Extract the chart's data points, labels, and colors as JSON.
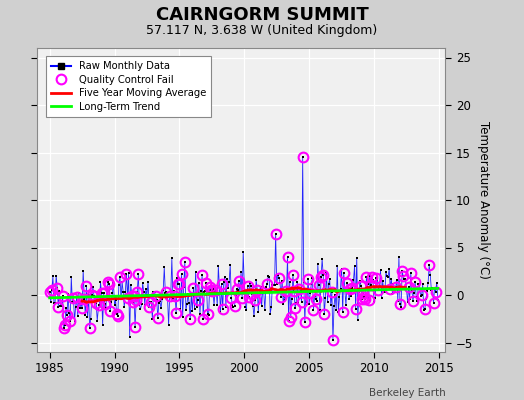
{
  "title": "CAIRNGORM SUMMIT",
  "subtitle": "57.117 N, 3.638 W (United Kingdom)",
  "ylabel": "Temperature Anomaly (°C)",
  "watermark": "Berkeley Earth",
  "xlim": [
    1984.0,
    2015.5
  ],
  "ylim": [
    -6,
    26
  ],
  "yticks": [
    -5,
    0,
    5,
    10,
    15,
    20,
    25
  ],
  "xticks": [
    1985,
    1990,
    1995,
    2000,
    2005,
    2010,
    2015
  ],
  "fig_bg_color": "#d0d0d0",
  "plot_bg_color": "#f0f0f0",
  "title_fontsize": 13,
  "subtitle_fontsize": 9,
  "seed": 42
}
